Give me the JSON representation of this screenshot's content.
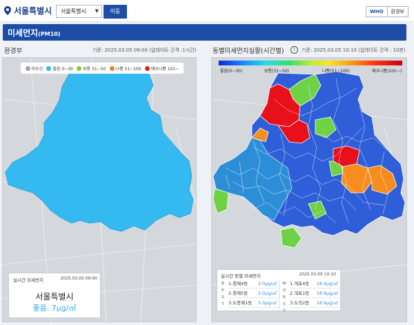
{
  "header": {
    "location": "서울특별시",
    "city_select_value": "서울특별시",
    "go_button": "이동",
    "std_who": "WHO",
    "std_env": "환경부"
  },
  "title": {
    "main": "미세먼지",
    "unit": "(PM10)"
  },
  "left_panel": {
    "heading": "환경부",
    "meta": "기준: 2025.03.05 09:00 (업데이트 간격 :1시간)",
    "legend": [
      {
        "label": "미수신",
        "color": "#9ea3a8"
      },
      {
        "label": "좋음 0~30",
        "color": "#33b9f0"
      },
      {
        "label": "보통 31~50",
        "color": "#7ed13a"
      },
      {
        "label": "나쁨 51~100",
        "color": "#f57e1f"
      },
      {
        "label": "매우나쁨 101~",
        "color": "#e0201b"
      }
    ],
    "card": {
      "heading": "실시간 미세먼지",
      "date": "2025.03.05 09:00",
      "city": "서울특별시",
      "value": "좋음, 7μg/㎥"
    }
  },
  "right_panel": {
    "heading": "동별미세먼지실황(시간별)",
    "meta": "기준: 2025.03.05 10:10 (업데이트 간격 : 10분)",
    "scale_labels": [
      "좋음(0~30)",
      "보통(31~50)",
      "나쁨(51~100)",
      "매우나쁨(101~)"
    ],
    "card": {
      "heading": "실시간 동별 미세먼지",
      "date": "2025.03.05 10:10",
      "best_tag": "BEST",
      "worst_tag": "WORST",
      "best": [
        {
          "name": "1.창제4동",
          "value": "3.0μg/㎥"
        },
        {
          "name": "2.창제5동",
          "value": "3.0μg/㎥"
        },
        {
          "name": "3.도봉제1동",
          "value": "3.0μg/㎥"
        }
      ],
      "worst": [
        {
          "name": "1.개포4동",
          "value": "18.9μg/㎥"
        },
        {
          "name": "2.개포1동",
          "value": "18.9μg/㎥"
        },
        {
          "name": "3.도곡2동",
          "value": "18.9μg/㎥"
        }
      ]
    }
  }
}
